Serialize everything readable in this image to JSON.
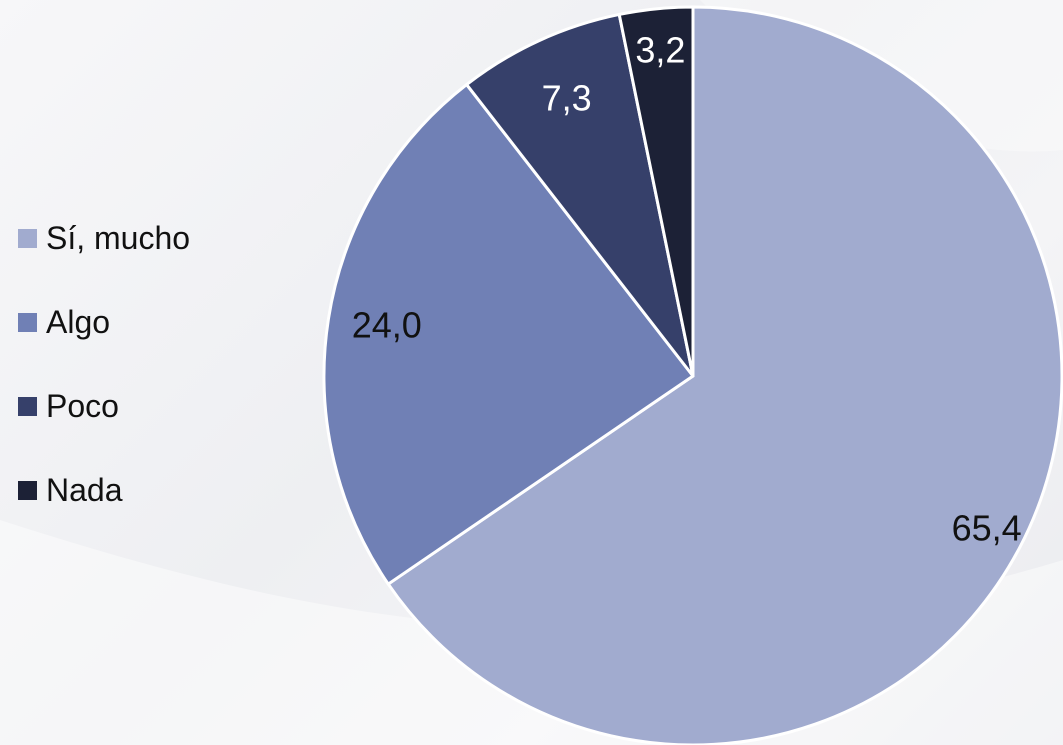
{
  "chart_data": {
    "type": "pie",
    "title": "",
    "categories": [
      "Sí, mucho",
      "Algo",
      "Poco",
      "Nada"
    ],
    "values": [
      65.4,
      24.0,
      7.3,
      3.2
    ],
    "value_labels": [
      "65,4",
      "24,0",
      "7,3",
      "3,2"
    ],
    "colors": [
      "#a1abcf",
      "#7080b5",
      "#36406a",
      "#1c2136"
    ],
    "label_colors": [
      "#111111",
      "#111111",
      "#ffffff",
      "#ffffff"
    ],
    "legend": {
      "position": "left",
      "entries": [
        "Sí, mucho",
        "Algo",
        "Poco",
        "Nada"
      ]
    },
    "start_angle": "12 o'clock",
    "direction": "clockwise"
  }
}
